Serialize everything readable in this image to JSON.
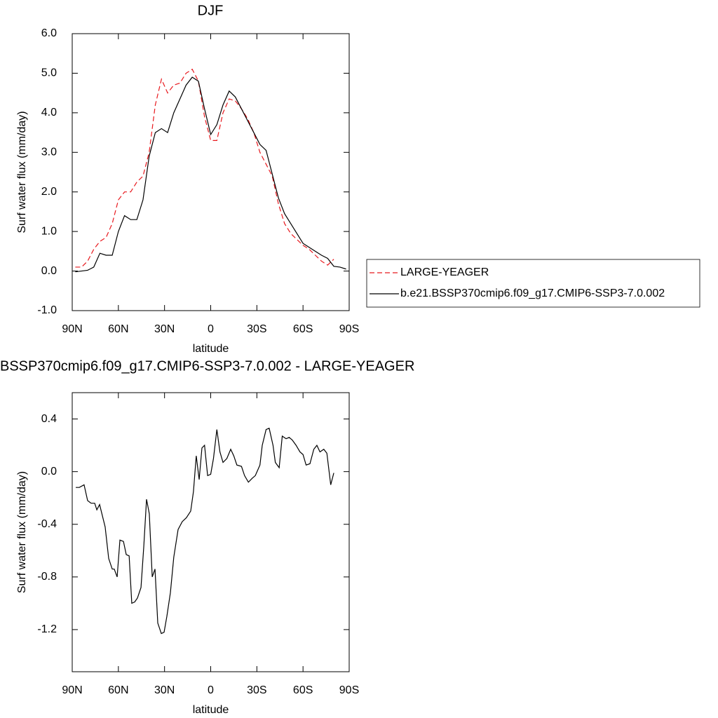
{
  "chart_data": [
    {
      "type": "line",
      "title": "DJF",
      "xlabel": "latitude",
      "ylabel": "Surf water flux (mm/day)",
      "xlim": [
        90,
        -90
      ],
      "ylim": [
        -1.0,
        6.0
      ],
      "xticks": [
        {
          "value": 90,
          "label": "90N"
        },
        {
          "value": 60,
          "label": "60N"
        },
        {
          "value": 30,
          "label": "30N"
        },
        0,
        {
          "value": -30,
          "label": "30S"
        },
        {
          "value": -60,
          "label": "60S"
        },
        {
          "value": -90,
          "label": "90S"
        }
      ],
      "yticks": [
        {
          "value": -1.0,
          "label": "-1.0"
        },
        {
          "value": 0.0,
          "label": "0.0"
        },
        {
          "value": 1.0,
          "label": "1.0"
        },
        {
          "value": 2.0,
          "label": "2.0"
        },
        {
          "value": 3.0,
          "label": "3.0"
        },
        {
          "value": 4.0,
          "label": "4.0"
        },
        {
          "value": 5.0,
          "label": "5.0"
        },
        {
          "value": 6.0,
          "label": "6.0"
        }
      ],
      "legend": "right",
      "x": [
        88,
        84,
        80,
        76,
        72,
        68,
        64,
        60,
        56,
        52,
        48,
        44,
        40,
        36,
        32,
        28,
        24,
        20,
        16,
        12,
        8,
        4,
        0,
        -4,
        -8,
        -12,
        -16,
        -20,
        -24,
        -28,
        -32,
        -36,
        -40,
        -44,
        -48,
        -52,
        -56,
        -60,
        -64,
        -68,
        -72,
        -76,
        -80,
        -84,
        -88
      ],
      "series": [
        {
          "name": "LARGE-YEAGER",
          "color": "#e8191e",
          "linestyle": "dashed",
          "values": [
            0.1,
            0.1,
            0.25,
            0.55,
            0.75,
            0.85,
            1.2,
            1.8,
            2.0,
            2.0,
            2.25,
            2.4,
            3.0,
            4.2,
            4.85,
            4.5,
            4.7,
            4.75,
            5.0,
            5.1,
            4.8,
            3.9,
            3.3,
            3.3,
            4.0,
            4.35,
            4.3,
            4.1,
            3.85,
            3.5,
            3.0,
            2.7,
            2.4,
            1.7,
            1.2,
            0.95,
            0.8,
            0.65,
            0.55,
            0.4,
            0.25,
            0.15,
            0.3,
            null,
            null
          ]
        },
        {
          "name": "b.e21.BSSP370cmip6.f09_g17.CMIP6-SSP3-7.0.002",
          "color": "#000000",
          "linestyle": "solid",
          "values": [
            -0.02,
            0.0,
            0.02,
            0.1,
            0.45,
            0.4,
            0.4,
            1.0,
            1.4,
            1.3,
            1.3,
            1.8,
            2.9,
            3.5,
            3.6,
            3.5,
            4.0,
            4.35,
            4.7,
            4.9,
            4.8,
            4.1,
            3.45,
            3.7,
            4.2,
            4.55,
            4.4,
            4.1,
            3.8,
            3.5,
            3.2,
            3.05,
            2.45,
            1.85,
            1.45,
            1.2,
            0.95,
            0.7,
            0.6,
            0.5,
            0.4,
            0.32,
            0.12,
            0.1,
            0.05
          ]
        }
      ]
    },
    {
      "type": "line",
      "title": "BSSP370cmip6.f09_g17.CMIP6-SSP3-7.0.002 - LARGE-YEAGER",
      "xlabel": "latitude",
      "ylabel": "Surf water flux (mm/day)",
      "xlim": [
        90,
        -90
      ],
      "ylim": [
        -1.52,
        0.6
      ],
      "xticks": [
        {
          "value": 90,
          "label": "90N"
        },
        {
          "value": 60,
          "label": "60N"
        },
        {
          "value": 30,
          "label": "30N"
        },
        0,
        {
          "value": -30,
          "label": "30S"
        },
        {
          "value": -60,
          "label": "60S"
        },
        {
          "value": -90,
          "label": "90S"
        }
      ],
      "yticks": [
        -1.2,
        -0.8,
        -0.4,
        {
          "value": 0.0,
          "label": "0.0"
        },
        0.4
      ],
      "color": "#000000",
      "x": [
        87.7,
        85.4,
        82.3,
        80,
        77.7,
        75.4,
        74,
        72.2,
        68.6,
        66.3,
        64,
        62.7,
        60.8,
        59,
        56.7,
        54.9,
        53,
        51.3,
        49.4,
        47.6,
        45.3,
        43.5,
        41.7,
        39.9,
        38,
        36.2,
        34.4,
        32.1,
        30.3,
        28.5,
        26.2,
        24,
        21.2,
        18.5,
        15.8,
        13,
        11.2,
        9.4,
        7.5,
        5.7,
        4,
        2,
        0,
        -1.8,
        -4,
        -6,
        -8,
        -10.5,
        -13,
        -15,
        -17,
        -20,
        -22,
        -24.5,
        -27,
        -29,
        -32,
        -33.5,
        -36,
        -38,
        -40.5,
        -42,
        -44.5,
        -46.5,
        -49,
        -51,
        -53,
        -55.5,
        -58,
        -60,
        -62,
        -64.5,
        -67,
        -69,
        -71,
        -73.5,
        -75.5,
        -78,
        -80
      ],
      "values": [
        -0.12,
        -0.12,
        -0.1,
        -0.22,
        -0.24,
        -0.24,
        -0.29,
        -0.25,
        -0.42,
        -0.66,
        -0.74,
        -0.74,
        -0.8,
        -0.52,
        -0.53,
        -0.63,
        -0.64,
        -1.0,
        -0.99,
        -0.96,
        -0.88,
        -0.57,
        -0.21,
        -0.32,
        -0.8,
        -0.74,
        -1.15,
        -1.23,
        -1.22,
        -1.1,
        -0.92,
        -0.65,
        -0.44,
        -0.38,
        -0.35,
        -0.3,
        -0.15,
        0.12,
        -0.06,
        0.18,
        0.2,
        -0.03,
        -0.02,
        0.1,
        0.32,
        0.15,
        0.07,
        0.1,
        0.17,
        0.12,
        0.05,
        0.04,
        -0.03,
        -0.08,
        -0.05,
        -0.03,
        0.05,
        0.2,
        0.32,
        0.33,
        0.2,
        0.07,
        0.03,
        0.27,
        0.25,
        0.26,
        0.24,
        0.2,
        0.15,
        0.13,
        0.05,
        0.06,
        0.17,
        0.2,
        0.15,
        0.17,
        0.14,
        -0.1,
        -0.01
      ]
    }
  ]
}
